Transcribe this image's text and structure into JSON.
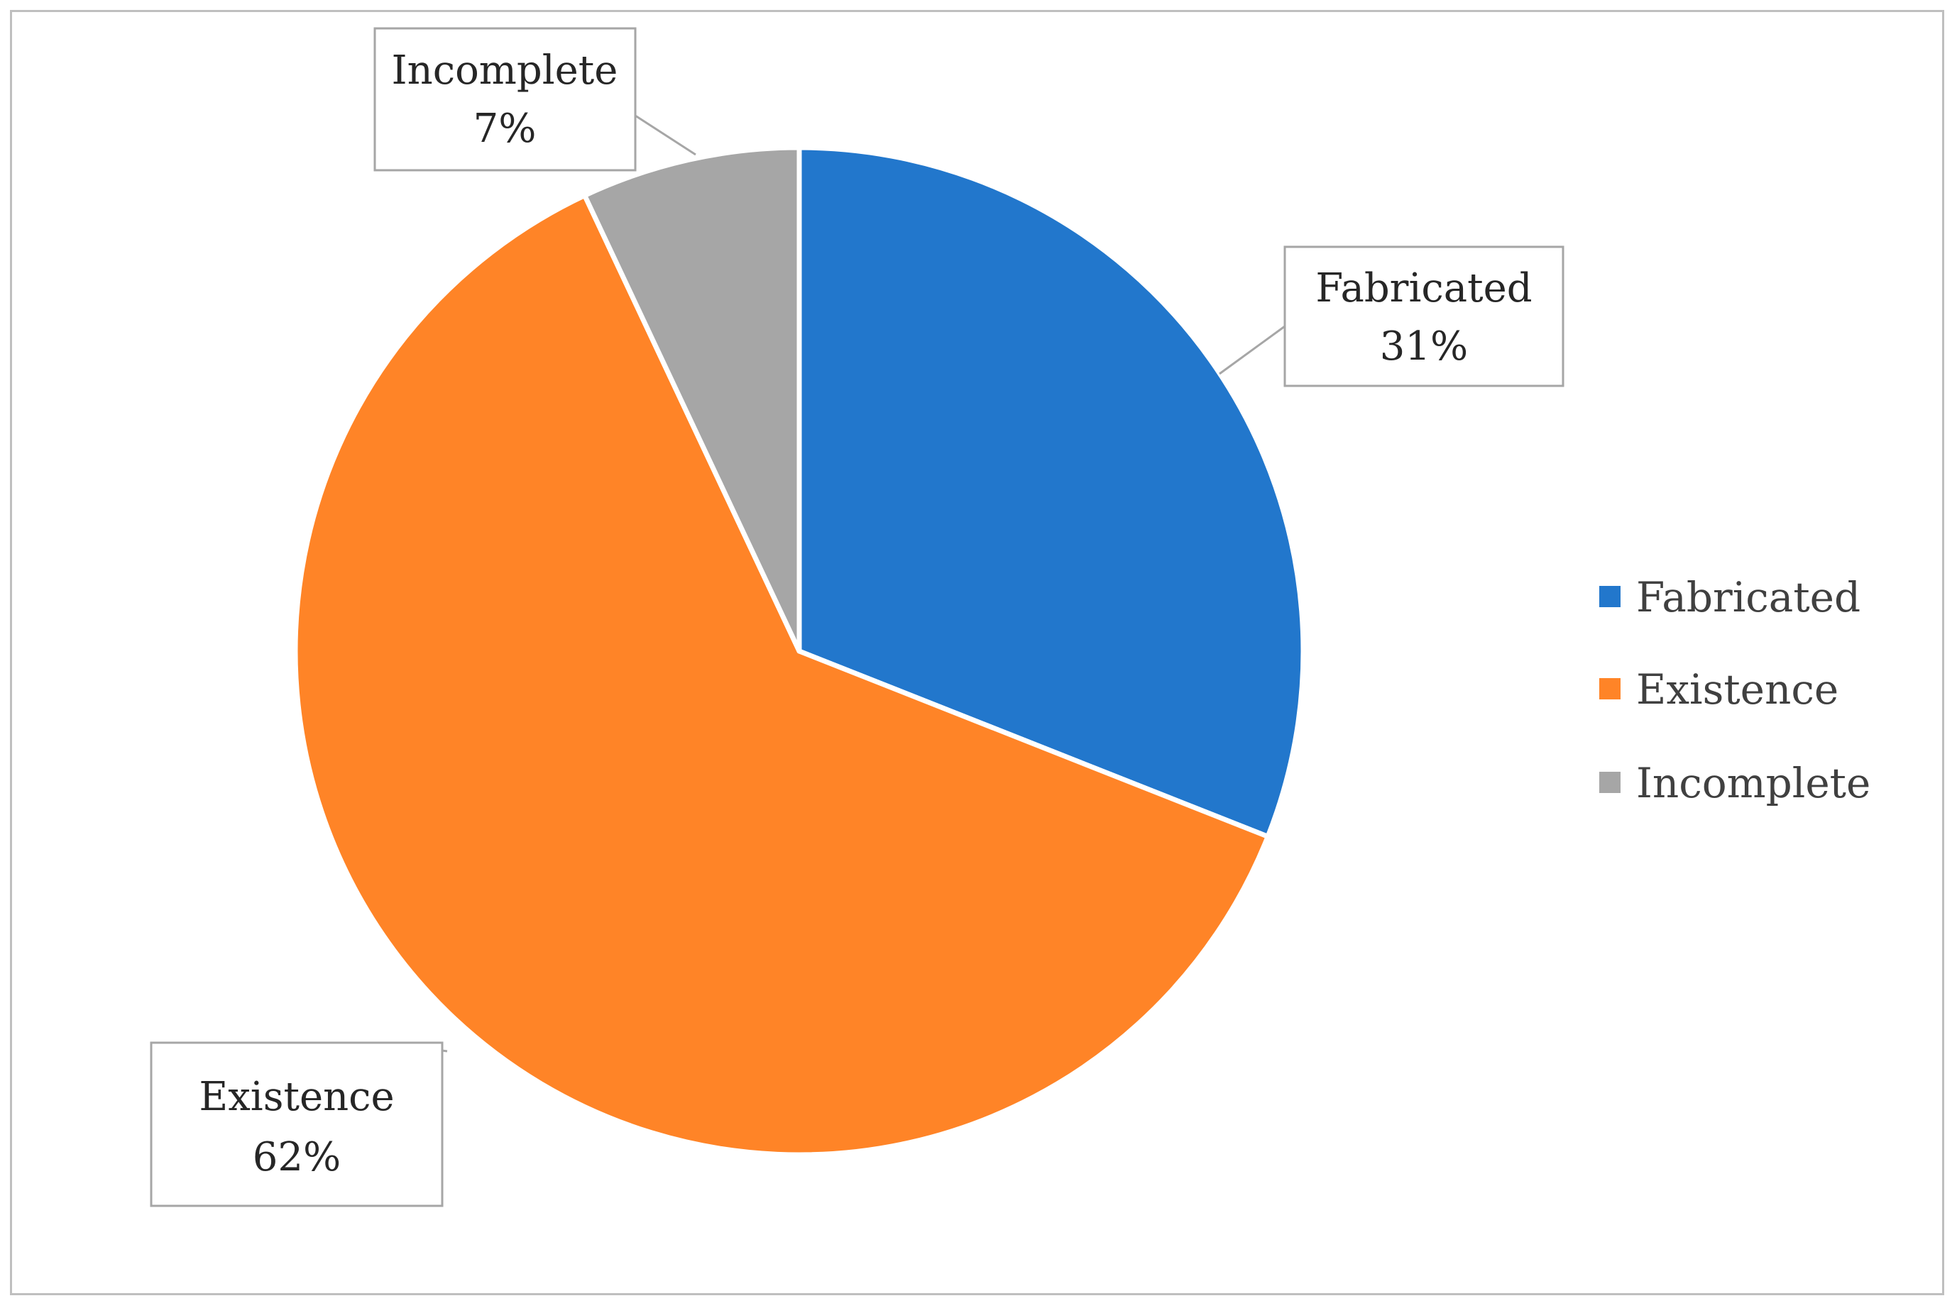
{
  "chart_data": {
    "type": "pie",
    "title": "",
    "categories": [
      "Fabricated",
      "Existence",
      "Incomplete"
    ],
    "values": [
      31,
      62,
      7
    ],
    "value_labels": [
      "31%",
      "62%",
      "7%"
    ],
    "colors": [
      "#2277cc",
      "#ff8427",
      "#a6a6a6"
    ],
    "start_angle_deg": 0,
    "direction": "clockwise",
    "legend": {
      "position": "right",
      "entries": [
        "Fabricated",
        "Existence",
        "Incomplete"
      ]
    }
  }
}
